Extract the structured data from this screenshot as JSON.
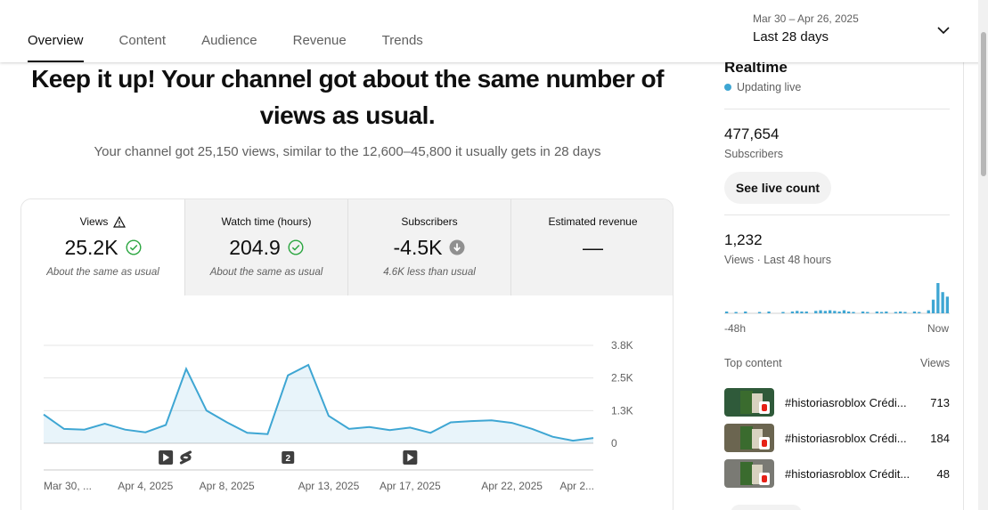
{
  "tabs": [
    {
      "label": "Overview",
      "active": true
    },
    {
      "label": "Content",
      "active": false
    },
    {
      "label": "Audience",
      "active": false
    },
    {
      "label": "Revenue",
      "active": false
    },
    {
      "label": "Trends",
      "active": false
    }
  ],
  "date_range": {
    "range": "Mar 30 – Apr 26, 2025",
    "label": "Last 28 days"
  },
  "headline": {
    "line1": "Keep it up! Your channel got about the same number of",
    "line2": "views as usual."
  },
  "subline": "Your channel got 25,150 views, similar to the 12,600–45,800 it usually gets in 28 days",
  "metrics": [
    {
      "label": "Views",
      "value": "25.2K",
      "note": "About the same as usual",
      "icon": "check-circle-icon",
      "label_icon": "warning-icon"
    },
    {
      "label": "Watch time (hours)",
      "value": "204.9",
      "note": "About the same as usual",
      "icon": "check-circle-icon"
    },
    {
      "label": "Subscribers",
      "value": "-4.5K",
      "note": "4.6K less than usual",
      "icon": "arrow-down-circle-icon"
    },
    {
      "label": "Estimated revenue",
      "value": "—",
      "note": ""
    }
  ],
  "chart_data": {
    "type": "area",
    "series": [
      {
        "values": [
          1100,
          550,
          520,
          750,
          520,
          420,
          700,
          2850,
          1250,
          800,
          400,
          350,
          2600,
          3000,
          1050,
          550,
          620,
          500,
          600,
          400,
          800,
          850,
          880,
          780,
          550,
          250,
          100,
          200
        ]
      }
    ],
    "ytick_labels": [
      "0",
      "1.3K",
      "2.5K",
      "3.8K"
    ],
    "ytick_values": [
      0,
      1250,
      2500,
      3750
    ],
    "xtick_labels": [
      "Mar 30, ...",
      "Apr 4, 2025",
      "Apr 8, 2025",
      "Apr 13, 2025",
      "Apr 17, 2025",
      "Apr 22, 2025",
      "Apr 2..."
    ],
    "xtick_index": [
      0,
      5,
      9,
      14,
      18,
      23,
      27
    ],
    "ylim": [
      0,
      3750
    ],
    "color": "#3ea6d3",
    "annotations": [
      {
        "index": 6,
        "icon": "video-play-icon"
      },
      {
        "index": 7,
        "icon": "shorts-icon"
      },
      {
        "index": 12,
        "label": "2"
      },
      {
        "index": 18,
        "icon": "video-play-icon"
      }
    ]
  },
  "realtime": {
    "title": "Realtime",
    "status": "Updating live",
    "subscribers": "477,654",
    "subscribers_label": "Subscribers",
    "live_button": "See live count",
    "views": "1,232",
    "views_label": "Views · Last 48 hours",
    "mini_left": "-48h",
    "mini_right": "Now",
    "mini_values": [
      0.06,
      0.0,
      0.03,
      0.0,
      0.06,
      0.0,
      0.0,
      0.03,
      0.0,
      0.06,
      0.0,
      0.0,
      0.03,
      0.0,
      0.06,
      0.08,
      0.06,
      0.06,
      0.0,
      0.08,
      0.1,
      0.08,
      0.1,
      0.08,
      0.06,
      0.1,
      0.06,
      0.03,
      0.0,
      0.06,
      0.03,
      0.0,
      0.06,
      0.03,
      0.06,
      0.0,
      0.03,
      0.06,
      0.03,
      0.0,
      0.06,
      0.03,
      0.0,
      0.1,
      0.45,
      1.0,
      0.7,
      0.55
    ]
  },
  "top_content": {
    "label": "Top content",
    "views_label": "Views",
    "items": [
      {
        "title": "#historiasroblox Crédi...",
        "views": "713"
      },
      {
        "title": "#historiasroblox Crédi...",
        "views": "184"
      },
      {
        "title": "#historiasroblox Crédit...",
        "views": "48"
      }
    ]
  },
  "colors": {
    "accent": "#3ea6d3",
    "text": "#0f0f0f",
    "muted": "#606060"
  }
}
